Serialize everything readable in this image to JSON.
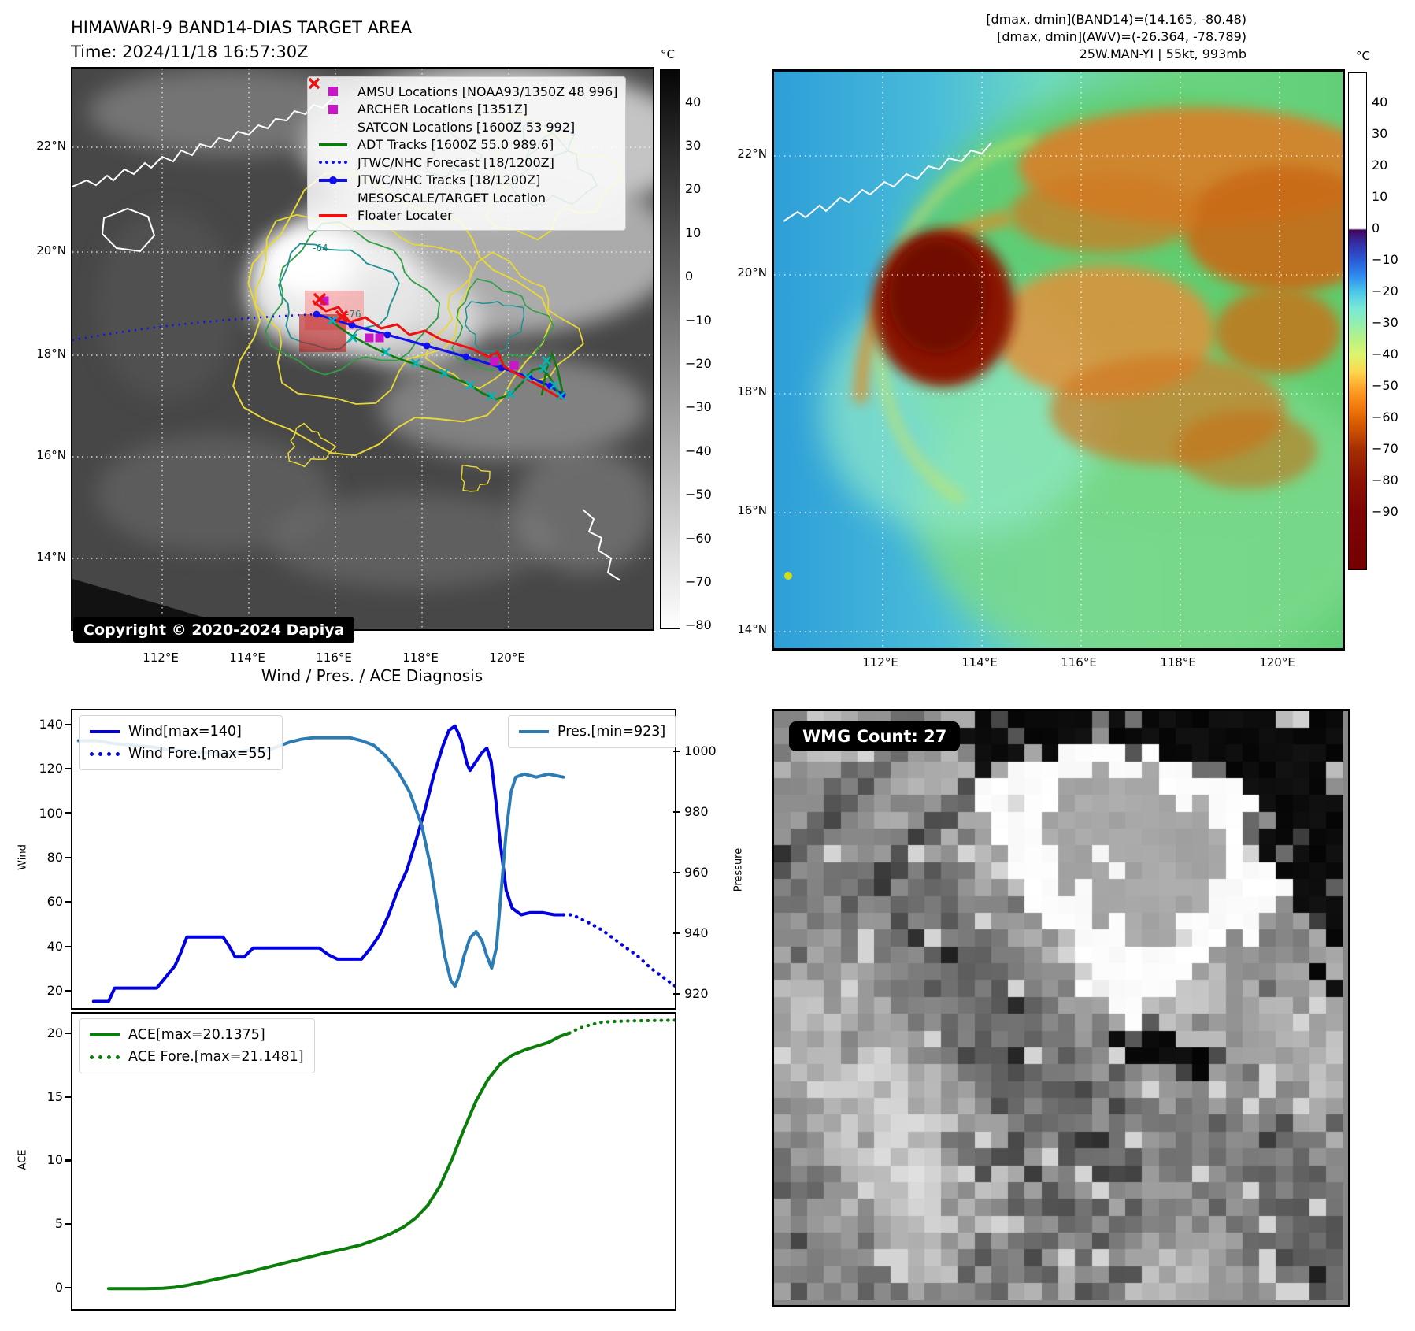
{
  "header": {
    "title_line1": "HIMAWARI-9 BAND14-DIAS TARGET AREA",
    "title_line2": "Time: 2024/11/18 16:57:30Z",
    "right_line1": "[dmax, dmin](BAND14)=(14.165, -80.48)",
    "right_line2": "[dmax, dmin](AWV)=(-26.364, -78.789)",
    "right_line3": "25W.MAN-YI | 55kt, 993mb"
  },
  "band14_map": {
    "copyright": "Copyright © 2020-2024 Dapiya",
    "legend": [
      {
        "label": "AMSU Locations [NOAA93/1350Z 48 996]",
        "marker": "square",
        "color": "#c816c8"
      },
      {
        "label": "ARCHER Locations [1351Z]",
        "marker": "square",
        "color": "#c816c8"
      },
      {
        "label": "SATCON Locations [1600Z 53 992]",
        "marker": "x",
        "color": "#00b5b5"
      },
      {
        "label": "ADT Tracks [1600Z 55.0 989.6]",
        "marker": "line",
        "color": "#107a10"
      },
      {
        "label": "JTWC/NHC Forecast [18/1200Z]",
        "marker": "dotted",
        "color": "#1010ee"
      },
      {
        "label": "JTWC/NHC Tracks [18/1200Z]",
        "marker": "line-dot",
        "color": "#1010ee"
      },
      {
        "label": "MESOSCALE/TARGET Location",
        "marker": "x",
        "color": "#ee1111"
      },
      {
        "label": "Floater Locater",
        "marker": "line",
        "color": "#ee1111"
      }
    ],
    "contour_labels": [
      "-64",
      "-76"
    ],
    "x_ticks": [
      "112°E",
      "114°E",
      "116°E",
      "118°E",
      "120°E"
    ],
    "y_ticks": [
      "22°N",
      "20°N",
      "18°N",
      "16°N",
      "14°N"
    ],
    "colorbar": {
      "unit": "°C",
      "ticks": [
        40,
        30,
        20,
        10,
        0,
        -10,
        -20,
        -30,
        -40,
        -50,
        -60,
        -70,
        -80
      ]
    }
  },
  "awv_map": {
    "x_ticks": [
      "112°E",
      "114°E",
      "116°E",
      "118°E",
      "120°E"
    ],
    "y_ticks": [
      "22°N",
      "20°N",
      "18°N",
      "16°N",
      "14°N"
    ],
    "colorbar": {
      "unit": "°C",
      "ticks": [
        40,
        30,
        20,
        10,
        0,
        -10,
        -20,
        -30,
        -40,
        -50,
        -60,
        -70,
        -80,
        -90
      ]
    }
  },
  "wmg_panel": {
    "count_label": "WMG Count: 27"
  },
  "chart_data": {
    "type": "line",
    "title": "Wind / Pres. / ACE Diagnosis",
    "x_axis": {
      "label": "",
      "range": [
        0,
        100
      ],
      "ticks": []
    },
    "subplots": [
      {
        "ylabel": "Wind",
        "ylabel_right": "Pressure",
        "yticks": [
          140,
          120,
          100,
          80,
          60,
          40,
          20
        ],
        "yticks_right": [
          1000,
          980,
          960,
          940,
          920
        ],
        "ylim": [
          13,
          147
        ],
        "ylim_right": [
          915.8,
          1014
        ],
        "series": [
          {
            "name": "Wind[max=140]",
            "color": "#0000e0",
            "style": "solid",
            "axis": "left",
            "legend_group": "left",
            "points": [
              [
                3.5,
                16
              ],
              [
                5,
                16
              ],
              [
                6,
                16
              ],
              [
                7,
                22
              ],
              [
                9,
                22
              ],
              [
                12,
                22
              ],
              [
                14,
                22
              ],
              [
                15.5,
                27
              ],
              [
                17,
                32
              ],
              [
                18,
                38
              ],
              [
                19,
                45
              ],
              [
                21,
                45
              ],
              [
                23,
                45
              ],
              [
                25,
                45
              ],
              [
                26,
                41
              ],
              [
                27,
                36
              ],
              [
                28.5,
                36
              ],
              [
                30,
                40
              ],
              [
                33,
                40
              ],
              [
                36,
                40
              ],
              [
                39,
                40
              ],
              [
                41,
                40
              ],
              [
                42.5,
                37
              ],
              [
                44,
                35
              ],
              [
                46,
                35
              ],
              [
                48,
                35
              ],
              [
                49.5,
                40
              ],
              [
                51,
                46
              ],
              [
                52.5,
                55
              ],
              [
                54,
                66
              ],
              [
                55.5,
                75
              ],
              [
                57,
                88
              ],
              [
                58.5,
                102
              ],
              [
                60,
                118
              ],
              [
                61.5,
                131
              ],
              [
                62.5,
                138
              ],
              [
                63.5,
                140
              ],
              [
                64.5,
                134
              ],
              [
                65.5,
                123
              ],
              [
                66,
                120
              ],
              [
                67,
                124
              ],
              [
                68,
                128
              ],
              [
                68.8,
                130
              ],
              [
                69.5,
                124
              ],
              [
                70.3,
                106
              ],
              [
                71,
                88
              ],
              [
                72,
                66
              ],
              [
                73,
                58
              ],
              [
                74.5,
                55
              ],
              [
                76,
                56
              ],
              [
                78,
                56
              ],
              [
                80,
                55
              ],
              [
                81.5,
                55
              ]
            ]
          },
          {
            "name": "Wind Fore.[max=55]",
            "color": "#0000e0",
            "style": "dotted",
            "axis": "left",
            "legend_group": "left",
            "points": [
              [
                81.5,
                55
              ],
              [
                83,
                55
              ],
              [
                84.5,
                53
              ],
              [
                86,
                51
              ],
              [
                88,
                48
              ],
              [
                90,
                44
              ],
              [
                92,
                40
              ],
              [
                94,
                36
              ],
              [
                96,
                31
              ],
              [
                98,
                27
              ],
              [
                100,
                23
              ]
            ]
          },
          {
            "name": "Pres.[min=923]",
            "color": "#2b7bb4",
            "style": "solid",
            "axis": "right",
            "legend_group": "right",
            "points": [
              [
                1,
                1004
              ],
              [
                4,
                1004
              ],
              [
                7,
                1003
              ],
              [
                10,
                1002.5
              ],
              [
                13,
                1002
              ],
              [
                16,
                1001
              ],
              [
                19,
                1000.5
              ],
              [
                22,
                1000
              ],
              [
                24,
                999.5
              ],
              [
                26,
                999.5
              ],
              [
                28,
                1000.5
              ],
              [
                30,
                1001
              ],
              [
                32,
                1000.5
              ],
              [
                34,
                1002
              ],
              [
                36,
                1003.5
              ],
              [
                38,
                1004.5
              ],
              [
                40,
                1005
              ],
              [
                43,
                1005
              ],
              [
                46,
                1005
              ],
              [
                48,
                1004
              ],
              [
                50,
                1002.5
              ],
              [
                52,
                999
              ],
              [
                54,
                994
              ],
              [
                56,
                987
              ],
              [
                58,
                976
              ],
              [
                59.5,
                962
              ],
              [
                60.8,
                946
              ],
              [
                61.8,
                933
              ],
              [
                62.8,
                925
              ],
              [
                63.5,
                923
              ],
              [
                64.3,
                927
              ],
              [
                65,
                933
              ],
              [
                66,
                939
              ],
              [
                67,
                941
              ],
              [
                68,
                938
              ],
              [
                68.8,
                933
              ],
              [
                69.6,
                929
              ],
              [
                70.4,
                936
              ],
              [
                71.2,
                955
              ],
              [
                72,
                974
              ],
              [
                72.8,
                987
              ],
              [
                73.6,
                992
              ],
              [
                75,
                993
              ],
              [
                77,
                992
              ],
              [
                79,
                993
              ],
              [
                81.5,
                992
              ]
            ]
          }
        ]
      },
      {
        "ylabel": "ACE",
        "yticks": [
          20,
          15,
          10,
          5,
          0
        ],
        "ylim": [
          -1.55,
          21.67
        ],
        "series": [
          {
            "name": "ACE[max=20.1375]",
            "color": "#0a7d0a",
            "style": "solid",
            "axis": "left",
            "legend_group": "left",
            "points": [
              [
                6,
                0.05
              ],
              [
                9,
                0.05
              ],
              [
                12,
                0.05
              ],
              [
                15,
                0.07
              ],
              [
                17,
                0.15
              ],
              [
                19,
                0.3
              ],
              [
                21,
                0.5
              ],
              [
                24,
                0.8
              ],
              [
                27,
                1.1
              ],
              [
                30,
                1.45
              ],
              [
                33,
                1.8
              ],
              [
                36,
                2.15
              ],
              [
                39,
                2.5
              ],
              [
                42,
                2.85
              ],
              [
                45,
                3.15
              ],
              [
                48,
                3.5
              ],
              [
                51,
                4.0
              ],
              [
                53,
                4.4
              ],
              [
                55,
                4.9
              ],
              [
                57,
                5.6
              ],
              [
                59,
                6.6
              ],
              [
                61,
                8.1
              ],
              [
                63,
                10.2
              ],
              [
                65,
                12.6
              ],
              [
                67,
                14.8
              ],
              [
                69,
                16.5
              ],
              [
                71,
                17.7
              ],
              [
                73,
                18.4
              ],
              [
                75,
                18.8
              ],
              [
                77,
                19.1
              ],
              [
                79,
                19.4
              ],
              [
                81,
                19.9
              ],
              [
                82.5,
                20.14
              ]
            ]
          },
          {
            "name": "ACE Fore.[max=21.1481]",
            "color": "#0a7d0a",
            "style": "dotted",
            "axis": "left",
            "legend_group": "left",
            "points": [
              [
                82.5,
                20.14
              ],
              [
                84,
                20.5
              ],
              [
                86,
                20.8
              ],
              [
                88,
                21.0
              ],
              [
                90,
                21.05
              ],
              [
                93,
                21.1
              ],
              [
                96,
                21.12
              ],
              [
                100,
                21.15
              ]
            ]
          }
        ]
      }
    ]
  }
}
